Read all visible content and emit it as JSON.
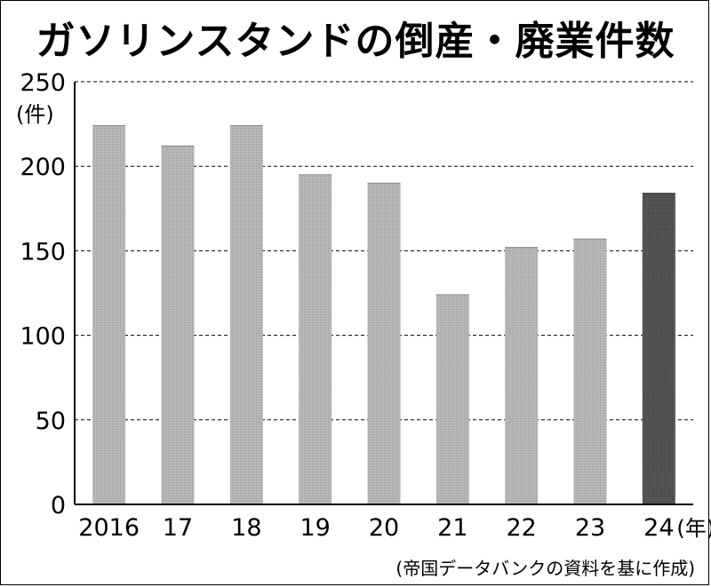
{
  "chart_data": {
    "type": "bar",
    "title": "ガソリンスタンドの倒産・廃業件数",
    "ylabel": "(件)",
    "xlabel": "(年)",
    "categories": [
      "2016",
      "17",
      "18",
      "19",
      "20",
      "21",
      "22",
      "23",
      "24"
    ],
    "values": [
      224,
      212,
      224,
      195,
      190,
      124,
      152,
      157,
      184
    ],
    "ylim": [
      0,
      250
    ],
    "yticks": [
      0,
      50,
      100,
      150,
      200,
      250
    ],
    "grid": true,
    "bar_color": "#a8a8a8",
    "highlight_color": "#555555",
    "highlight_index": 8
  },
  "source": "(帝国データバンクの資料を基に作成)"
}
